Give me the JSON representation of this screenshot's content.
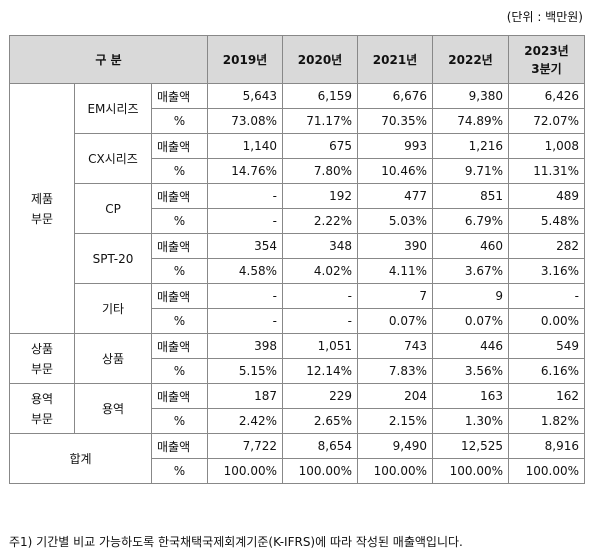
{
  "unit_label": "(단위 : 백만원)",
  "headers": {
    "category": "구 분",
    "years": [
      "2019년",
      "2020년",
      "2021년",
      "2022년",
      "2023년"
    ],
    "last_sub": "3분기"
  },
  "metrics": {
    "sales": "매출액",
    "pct": "%"
  },
  "segments": {
    "product": [
      "제품",
      "부문"
    ],
    "goods": [
      "상품",
      "부문"
    ],
    "service": [
      "용역",
      "부문"
    ],
    "total": "합계"
  },
  "rows": [
    {
      "item": "EM시리즈",
      "sales": [
        "5,643",
        "6,159",
        "6,676",
        "9,380",
        "6,426"
      ],
      "pct": [
        "73.08%",
        "71.17%",
        "70.35%",
        "74.89%",
        "72.07%"
      ]
    },
    {
      "item": "CX시리즈",
      "sales": [
        "1,140",
        "675",
        "993",
        "1,216",
        "1,008"
      ],
      "pct": [
        "14.76%",
        "7.80%",
        "10.46%",
        "9.71%",
        "11.31%"
      ]
    },
    {
      "item": "CP",
      "sales": [
        "-",
        "192",
        "477",
        "851",
        "489"
      ],
      "pct": [
        "-",
        "2.22%",
        "5.03%",
        "6.79%",
        "5.48%"
      ]
    },
    {
      "item": "SPT-20",
      "sales": [
        "354",
        "348",
        "390",
        "460",
        "282"
      ],
      "pct": [
        "4.58%",
        "4.02%",
        "4.11%",
        "3.67%",
        "3.16%"
      ]
    },
    {
      "item": "기타",
      "sales": [
        "-",
        "-",
        "7",
        "9",
        "-"
      ],
      "pct": [
        "-",
        "-",
        "0.07%",
        "0.07%",
        "0.00%"
      ]
    },
    {
      "item": "상품",
      "sales": [
        "398",
        "1,051",
        "743",
        "446",
        "549"
      ],
      "pct": [
        "5.15%",
        "12.14%",
        "7.83%",
        "3.56%",
        "6.16%"
      ]
    },
    {
      "item": "용역",
      "sales": [
        "187",
        "229",
        "204",
        "163",
        "162"
      ],
      "pct": [
        "2.42%",
        "2.65%",
        "2.15%",
        "1.30%",
        "1.82%"
      ]
    },
    {
      "item": "합계",
      "sales": [
        "7,722",
        "8,654",
        "9,490",
        "12,525",
        "8,916"
      ],
      "pct": [
        "100.00%",
        "100.00%",
        "100.00%",
        "100.00%",
        "100.00%"
      ]
    }
  ],
  "footnote": "주1) 기간별 비교 가능하도록 한국채택국제회계기준(K-IFRS)에 따라 작성된 매출액입니다."
}
